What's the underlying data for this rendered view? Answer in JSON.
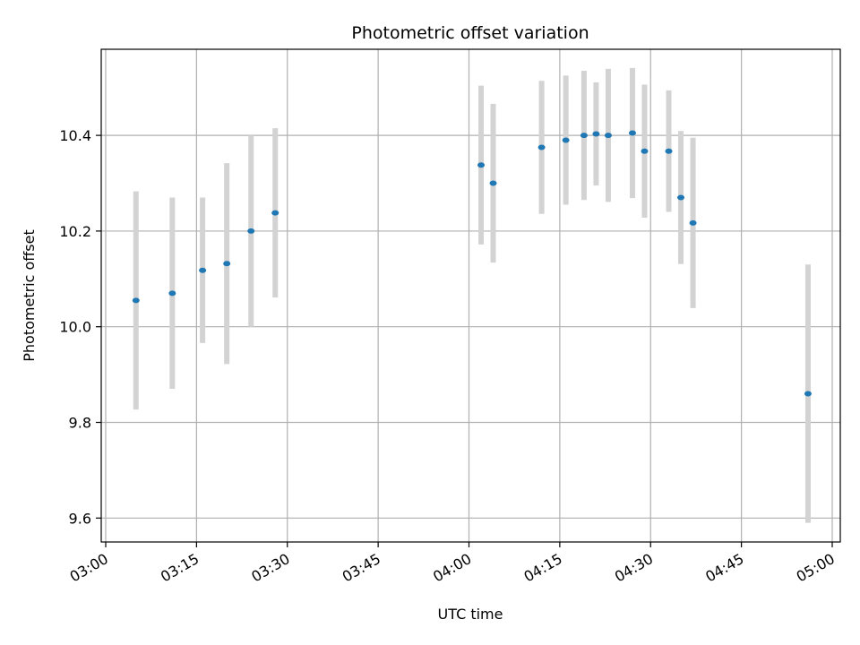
{
  "chart_data": {
    "type": "scatter",
    "title": "Photometric offset variation",
    "xlabel": "UTC time",
    "ylabel": "Photometric offset",
    "x_axis_type": "time",
    "xlim": [
      "03:00",
      "05:00"
    ],
    "ylim": [
      9.55,
      10.58
    ],
    "x_ticks": [
      "03:00",
      "03:15",
      "03:30",
      "03:45",
      "04:00",
      "04:15",
      "04:30",
      "04:45",
      "05:00"
    ],
    "y_ticks": [
      9.6,
      9.8,
      10.0,
      10.2,
      10.4
    ],
    "y_tick_labels": [
      "9.6",
      "9.8",
      "10.0",
      "10.2",
      "10.4"
    ],
    "grid": true,
    "marker_color": "#1f77b4",
    "errorbar_color": "#d3d3d3",
    "points": [
      {
        "x": "03:05",
        "y": 10.055,
        "err": 0.228
      },
      {
        "x": "03:11",
        "y": 10.07,
        "err": 0.2
      },
      {
        "x": "03:16",
        "y": 10.118,
        "err": 0.152
      },
      {
        "x": "03:20",
        "y": 10.132,
        "err": 0.21
      },
      {
        "x": "03:24",
        "y": 10.2,
        "err": 0.2
      },
      {
        "x": "03:28",
        "y": 10.238,
        "err": 0.177
      },
      {
        "x": "04:02",
        "y": 10.338,
        "err": 0.166
      },
      {
        "x": "04:04",
        "y": 10.3,
        "err": 0.166
      },
      {
        "x": "04:12",
        "y": 10.375,
        "err": 0.139
      },
      {
        "x": "04:16",
        "y": 10.39,
        "err": 0.135
      },
      {
        "x": "04:19",
        "y": 10.4,
        "err": 0.135
      },
      {
        "x": "04:21",
        "y": 10.403,
        "err": 0.108
      },
      {
        "x": "04:23",
        "y": 10.4,
        "err": 0.139
      },
      {
        "x": "04:27",
        "y": 10.405,
        "err": 0.136
      },
      {
        "x": "04:29",
        "y": 10.367,
        "err": 0.139
      },
      {
        "x": "04:33",
        "y": 10.367,
        "err": 0.127
      },
      {
        "x": "04:35",
        "y": 10.27,
        "err": 0.139
      },
      {
        "x": "04:37",
        "y": 10.217,
        "err": 0.178
      },
      {
        "x": "04:56",
        "y": 9.86,
        "err": 0.27
      }
    ]
  }
}
